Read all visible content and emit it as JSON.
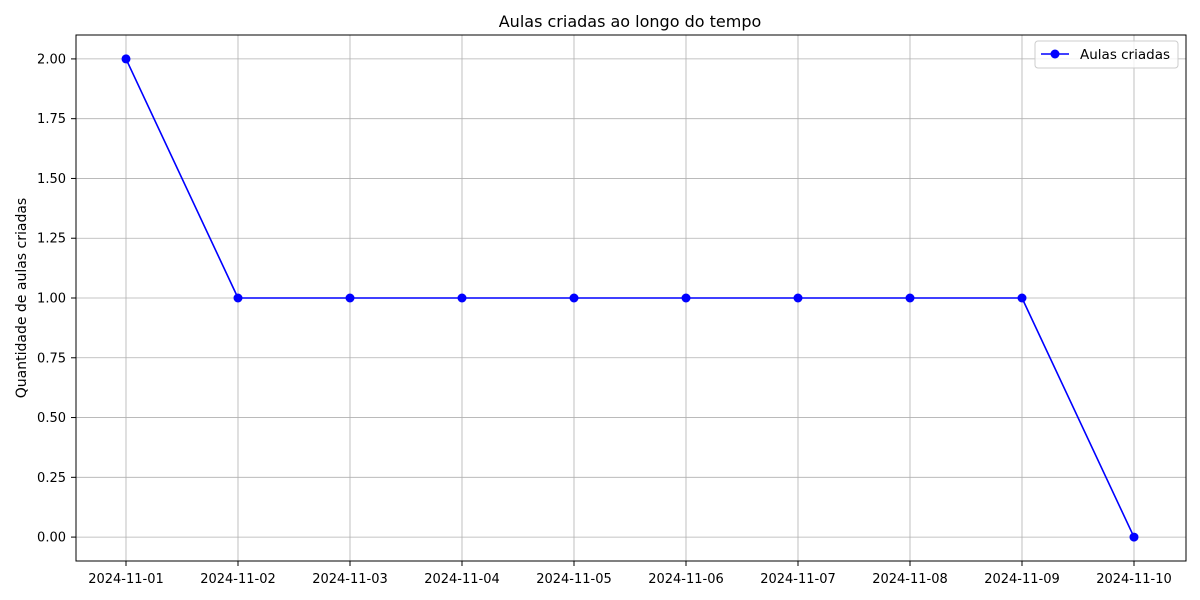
{
  "chart_data": {
    "type": "line",
    "title": "Aulas criadas ao longo do tempo",
    "xlabel": "",
    "ylabel": "Quantidade de aulas criadas",
    "categories": [
      "2024-11-01",
      "2024-11-02",
      "2024-11-03",
      "2024-11-04",
      "2024-11-05",
      "2024-11-06",
      "2024-11-07",
      "2024-11-08",
      "2024-11-09",
      "2024-11-10"
    ],
    "series": [
      {
        "name": "Aulas criadas",
        "values": [
          2,
          1,
          1,
          1,
          1,
          1,
          1,
          1,
          1,
          0
        ],
        "color": "#0000ff",
        "marker": "circle"
      }
    ],
    "ylim": [
      -0.1,
      2.1
    ],
    "yticks": [
      "0.00",
      "0.25",
      "0.50",
      "0.75",
      "1.00",
      "1.25",
      "1.50",
      "1.75",
      "2.00"
    ],
    "grid": true,
    "legend": "top-right"
  }
}
